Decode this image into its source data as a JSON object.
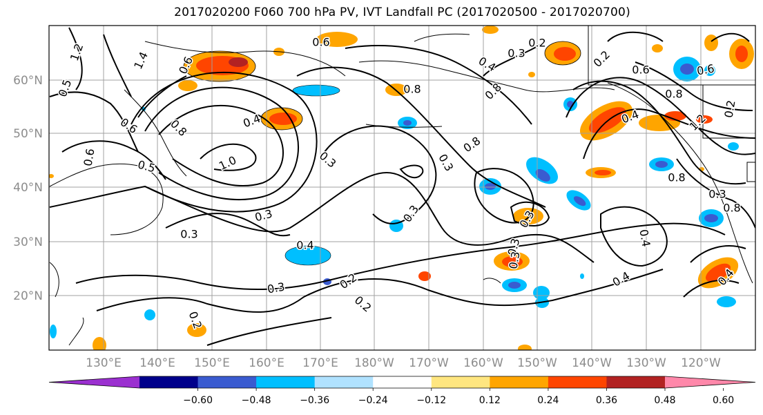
{
  "title": "2017020200 F060 700 hPa PV, IVT Landfall PC (2017020500 - 2017020700)",
  "chart_data": {
    "type": "map",
    "lat_ticks": [
      "60°N",
      "50°N",
      "40°N",
      "30°N",
      "20°N"
    ],
    "lon_ticks": [
      "130°E",
      "140°E",
      "150°E",
      "160°E",
      "170°E",
      "180°W",
      "170°W",
      "160°W",
      "150°W",
      "140°W",
      "130°W",
      "120°W"
    ],
    "grid": true,
    "contour_labels": [
      "1.2",
      "1.4",
      "0.5",
      "0.6",
      "0.6",
      "0.8",
      "0.5",
      "1.0",
      "0.6",
      "0.4",
      "0.3",
      "0.3",
      "0.3",
      "0.4",
      "0.6",
      "0.4",
      "0.8",
      "0.2",
      "0.3",
      "0.6",
      "0.8",
      "0.3",
      "0.3",
      "0.3",
      "0.3",
      "0.4",
      "0.3",
      "0.2",
      "0.2",
      "0.3",
      "0.4",
      "0.2",
      "0.8",
      "0.8",
      "1.2",
      "0.6",
      "0.2",
      "0.3",
      "0.4",
      "0.2",
      "0.4",
      "0.8",
      "0.8"
    ],
    "colorbar": {
      "ticks": [
        "−0.60",
        "−0.48",
        "−0.36",
        "−0.24",
        "−0.12",
        "0.12",
        "0.24",
        "0.36",
        "0.48",
        "0.60"
      ],
      "colors": [
        "#9b30d0",
        "#00008b",
        "#3a5bd0",
        "#00bfff",
        "#b0e2ff",
        "#ffffff",
        "#ffe680",
        "#ffa500",
        "#ff4500",
        "#b22222",
        "#ff88aa"
      ]
    }
  }
}
